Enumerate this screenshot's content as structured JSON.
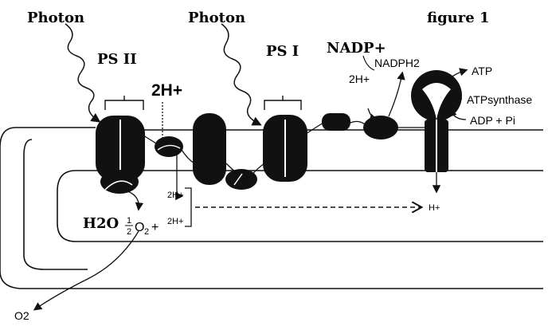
{
  "diagram": {
    "figure_label": "figure 1",
    "photon_left": "Photon",
    "photon_right": "Photon",
    "ps2": "PS II",
    "ps1": "PS I",
    "two_h_plus_large": "2H+",
    "nadp_plus": "NADP+",
    "nadph2": "NADPH2",
    "two_h_plus_small": "2H+",
    "atp": "ATP",
    "atp_synthase": "ATPsynthase",
    "adp_pi": "ADP + Pi",
    "lumen_2h_a": "2H+",
    "lumen_2h_b": "2H+",
    "h_plus": "H+",
    "water": "H2O",
    "half_num": "1",
    "half_den": "2",
    "o2_label_o": "O",
    "o2_label_sub": "2",
    "plus": "+",
    "o2_out": "O2"
  },
  "colors": {
    "ink": "#111111",
    "background": "#ffffff"
  }
}
